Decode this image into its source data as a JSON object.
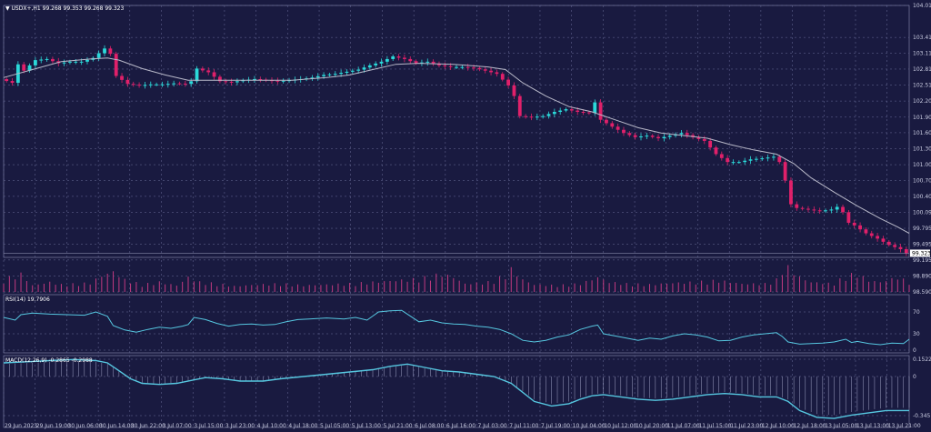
{
  "header": {
    "symbol": "USDX+,H1",
    "ohlc": "99.268 99.353 99.268 99.323",
    "rsi_label": "RSI(14) 19.7906",
    "macd_label": "MACD(12,26,9) -0.2865 -0.2988"
  },
  "colors": {
    "background": "#191a40",
    "grid": "#6b6e9a",
    "bull": "#2bd9d9",
    "bear": "#e0206a",
    "ma": "#b9b9c9",
    "indicator": "#56c7e0"
  },
  "chart_data": {
    "type": "candlestick",
    "price_ticks": [
      "104.015",
      "103.410",
      "103.110",
      "102.810",
      "102.510",
      "102.205",
      "101.900",
      "101.605",
      "101.305",
      "101.000",
      "100.700",
      "100.400",
      "100.095",
      "99.795",
      "99.495",
      "99.195",
      "98.890",
      "98.590"
    ],
    "last_price": "99.323",
    "rsi_ticks": [
      "70",
      "30",
      "0"
    ],
    "macd_ticks": [
      "0.1522",
      "0",
      "-0.3451"
    ],
    "x_ticks": [
      "29 Jun 2023",
      "29 Jun 19:00",
      "30 Jun 06:00",
      "30 Jun 14:00",
      "30 Jun 22:00",
      "3 Jul 07:00",
      "3 Jul 15:00",
      "3 Jul 23:00",
      "4 Jul 10:00",
      "4 Jul 18:00",
      "5 Jul 05:00",
      "5 Jul 13:00",
      "5 Jul 21:00",
      "6 Jul 08:00",
      "6 Jul 16:00",
      "7 Jul 03:00",
      "7 Jul 11:00",
      "7 Jul 19:00",
      "10 Jul 04:00",
      "10 Jul 12:00",
      "10 Jul 20:00",
      "11 Jul 07:00",
      "11 Jul 15:00",
      "11 Jul 23:00",
      "12 Jul 10:00",
      "12 Jul 18:00",
      "13 Jul 05:00",
      "13 Jul 13:00",
      "13 Jul 21:00"
    ],
    "price_path": [
      [
        0,
        102.62
      ],
      [
        2,
        102.55
      ],
      [
        3,
        102.9
      ],
      [
        4,
        102.78
      ],
      [
        6,
        102.98
      ],
      [
        8,
        103.0
      ],
      [
        10,
        102.92
      ],
      [
        12,
        102.95
      ],
      [
        14,
        102.95
      ],
      [
        16,
        103.02
      ],
      [
        18,
        103.2
      ],
      [
        19,
        103.1
      ],
      [
        20,
        102.68
      ],
      [
        22,
        102.53
      ],
      [
        24,
        102.5
      ],
      [
        26,
        102.52
      ],
      [
        28,
        102.52
      ],
      [
        30,
        102.54
      ],
      [
        32,
        102.53
      ],
      [
        33,
        102.58
      ],
      [
        34,
        102.82
      ],
      [
        36,
        102.75
      ],
      [
        38,
        102.58
      ],
      [
        40,
        102.56
      ],
      [
        42,
        102.6
      ],
      [
        44,
        102.62
      ],
      [
        46,
        102.6
      ],
      [
        48,
        102.58
      ],
      [
        50,
        102.6
      ],
      [
        52,
        102.62
      ],
      [
        54,
        102.65
      ],
      [
        56,
        102.7
      ],
      [
        58,
        102.72
      ],
      [
        60,
        102.76
      ],
      [
        62,
        102.8
      ],
      [
        64,
        102.88
      ],
      [
        66,
        102.95
      ],
      [
        68,
        103.05
      ],
      [
        70,
        103.0
      ],
      [
        72,
        102.92
      ],
      [
        74,
        102.95
      ],
      [
        76,
        102.88
      ],
      [
        78,
        102.85
      ],
      [
        80,
        102.85
      ],
      [
        82,
        102.83
      ],
      [
        84,
        102.78
      ],
      [
        86,
        102.72
      ],
      [
        88,
        102.5
      ],
      [
        89,
        102.3
      ],
      [
        90,
        101.92
      ],
      [
        92,
        101.9
      ],
      [
        94,
        101.92
      ],
      [
        96,
        102.0
      ],
      [
        98,
        102.05
      ],
      [
        100,
        102.0
      ],
      [
        102,
        101.98
      ],
      [
        103,
        102.18
      ],
      [
        104,
        101.85
      ],
      [
        106,
        101.72
      ],
      [
        108,
        101.6
      ],
      [
        110,
        101.52
      ],
      [
        112,
        101.55
      ],
      [
        114,
        101.5
      ],
      [
        116,
        101.55
      ],
      [
        118,
        101.6
      ],
      [
        120,
        101.52
      ],
      [
        122,
        101.45
      ],
      [
        124,
        101.2
      ],
      [
        126,
        101.05
      ],
      [
        128,
        101.05
      ],
      [
        130,
        101.1
      ],
      [
        132,
        101.12
      ],
      [
        134,
        101.15
      ],
      [
        135,
        101.05
      ],
      [
        136,
        100.7
      ],
      [
        137,
        100.25
      ],
      [
        138,
        100.18
      ],
      [
        140,
        100.15
      ],
      [
        142,
        100.12
      ],
      [
        144,
        100.15
      ],
      [
        145,
        100.2
      ],
      [
        146,
        100.1
      ],
      [
        147,
        99.9
      ],
      [
        148,
        99.85
      ],
      [
        150,
        99.7
      ],
      [
        152,
        99.6
      ],
      [
        154,
        99.48
      ],
      [
        156,
        99.4
      ],
      [
        157,
        99.32
      ]
    ],
    "ma_path": [
      [
        0,
        102.65
      ],
      [
        5,
        102.8
      ],
      [
        10,
        102.95
      ],
      [
        15,
        103.0
      ],
      [
        18,
        103.02
      ],
      [
        20,
        102.98
      ],
      [
        24,
        102.82
      ],
      [
        28,
        102.7
      ],
      [
        32,
        102.6
      ],
      [
        36,
        102.6
      ],
      [
        42,
        102.6
      ],
      [
        50,
        102.6
      ],
      [
        56,
        102.65
      ],
      [
        60,
        102.7
      ],
      [
        64,
        102.8
      ],
      [
        68,
        102.9
      ],
      [
        72,
        102.92
      ],
      [
        78,
        102.9
      ],
      [
        84,
        102.85
      ],
      [
        87,
        102.8
      ],
      [
        90,
        102.55
      ],
      [
        94,
        102.3
      ],
      [
        98,
        102.1
      ],
      [
        102,
        102.0
      ],
      [
        106,
        101.85
      ],
      [
        110,
        101.7
      ],
      [
        114,
        101.6
      ],
      [
        118,
        101.55
      ],
      [
        122,
        101.5
      ],
      [
        126,
        101.38
      ],
      [
        130,
        101.28
      ],
      [
        134,
        101.2
      ],
      [
        137,
        101.02
      ],
      [
        140,
        100.75
      ],
      [
        144,
        100.48
      ],
      [
        148,
        100.22
      ],
      [
        152,
        99.98
      ],
      [
        155,
        99.82
      ],
      [
        157,
        99.7
      ]
    ],
    "volume_path": [
      [
        0,
        15
      ],
      [
        3,
        22
      ],
      [
        5,
        8
      ],
      [
        8,
        12
      ],
      [
        10,
        9
      ],
      [
        13,
        10
      ],
      [
        15,
        11
      ],
      [
        17,
        20
      ],
      [
        19,
        25
      ],
      [
        21,
        15
      ],
      [
        24,
        9
      ],
      [
        27,
        12
      ],
      [
        30,
        8
      ],
      [
        32,
        18
      ],
      [
        34,
        12
      ],
      [
        37,
        10
      ],
      [
        40,
        7
      ],
      [
        44,
        9
      ],
      [
        48,
        10
      ],
      [
        52,
        8
      ],
      [
        56,
        9
      ],
      [
        60,
        10
      ],
      [
        64,
        12
      ],
      [
        68,
        14
      ],
      [
        72,
        16
      ],
      [
        76,
        22
      ],
      [
        78,
        18
      ],
      [
        80,
        10
      ],
      [
        84,
        12
      ],
      [
        87,
        20
      ],
      [
        88,
        28
      ],
      [
        90,
        15
      ],
      [
        92,
        9
      ],
      [
        96,
        8
      ],
      [
        100,
        10
      ],
      [
        103,
        18
      ],
      [
        105,
        12
      ],
      [
        108,
        10
      ],
      [
        112,
        9
      ],
      [
        116,
        11
      ],
      [
        120,
        12
      ],
      [
        124,
        14
      ],
      [
        128,
        10
      ],
      [
        132,
        10
      ],
      [
        134,
        15
      ],
      [
        135,
        28
      ],
      [
        136,
        30
      ],
      [
        138,
        18
      ],
      [
        140,
        12
      ],
      [
        144,
        10
      ],
      [
        146,
        20
      ],
      [
        148,
        22
      ],
      [
        150,
        14
      ],
      [
        152,
        12
      ],
      [
        155,
        18
      ],
      [
        157,
        12
      ]
    ],
    "rsi_path": [
      [
        0,
        60
      ],
      [
        2,
        55
      ],
      [
        3,
        65
      ],
      [
        5,
        68
      ],
      [
        8,
        66
      ],
      [
        11,
        65
      ],
      [
        14,
        64
      ],
      [
        16,
        70
      ],
      [
        18,
        62
      ],
      [
        19,
        45
      ],
      [
        21,
        37
      ],
      [
        23,
        33
      ],
      [
        25,
        38
      ],
      [
        27,
        42
      ],
      [
        29,
        40
      ],
      [
        31,
        44
      ],
      [
        32,
        47
      ],
      [
        33,
        60
      ],
      [
        35,
        56
      ],
      [
        37,
        49
      ],
      [
        39,
        44
      ],
      [
        41,
        47
      ],
      [
        43,
        48
      ],
      [
        45,
        46
      ],
      [
        47,
        47
      ],
      [
        49,
        52
      ],
      [
        51,
        56
      ],
      [
        53,
        57
      ],
      [
        56,
        59
      ],
      [
        59,
        57
      ],
      [
        61,
        60
      ],
      [
        63,
        55
      ],
      [
        65,
        70
      ],
      [
        67,
        72
      ],
      [
        69,
        73
      ],
      [
        70,
        66
      ],
      [
        72,
        52
      ],
      [
        74,
        55
      ],
      [
        76,
        50
      ],
      [
        78,
        48
      ],
      [
        80,
        47
      ],
      [
        82,
        44
      ],
      [
        84,
        42
      ],
      [
        86,
        38
      ],
      [
        88,
        30
      ],
      [
        90,
        18
      ],
      [
        92,
        15
      ],
      [
        94,
        18
      ],
      [
        96,
        24
      ],
      [
        98,
        28
      ],
      [
        100,
        38
      ],
      [
        102,
        44
      ],
      [
        103,
        46
      ],
      [
        104,
        30
      ],
      [
        106,
        26
      ],
      [
        108,
        22
      ],
      [
        110,
        18
      ],
      [
        112,
        22
      ],
      [
        114,
        20
      ],
      [
        116,
        26
      ],
      [
        118,
        30
      ],
      [
        120,
        28
      ],
      [
        122,
        24
      ],
      [
        124,
        17
      ],
      [
        126,
        18
      ],
      [
        128,
        24
      ],
      [
        130,
        28
      ],
      [
        132,
        30
      ],
      [
        134,
        32
      ],
      [
        135,
        25
      ],
      [
        136,
        15
      ],
      [
        138,
        11
      ],
      [
        140,
        12
      ],
      [
        142,
        13
      ],
      [
        144,
        15
      ],
      [
        146,
        20
      ],
      [
        147,
        14
      ],
      [
        148,
        16
      ],
      [
        150,
        12
      ],
      [
        152,
        10
      ],
      [
        154,
        13
      ],
      [
        156,
        12
      ],
      [
        157,
        20
      ]
    ],
    "macd_path": [
      [
        0,
        0.12
      ],
      [
        4,
        0.13
      ],
      [
        8,
        0.14
      ],
      [
        12,
        0.15
      ],
      [
        16,
        0.14
      ],
      [
        18,
        0.12
      ],
      [
        20,
        0.05
      ],
      [
        22,
        -0.02
      ],
      [
        24,
        -0.06
      ],
      [
        27,
        -0.07
      ],
      [
        30,
        -0.06
      ],
      [
        33,
        -0.03
      ],
      [
        35,
        -0.01
      ],
      [
        38,
        -0.02
      ],
      [
        41,
        -0.04
      ],
      [
        45,
        -0.04
      ],
      [
        48,
        -0.02
      ],
      [
        52,
        0.0
      ],
      [
        56,
        0.02
      ],
      [
        60,
        0.04
      ],
      [
        64,
        0.06
      ],
      [
        67,
        0.09
      ],
      [
        70,
        0.11
      ],
      [
        73,
        0.08
      ],
      [
        76,
        0.05
      ],
      [
        79,
        0.04
      ],
      [
        82,
        0.02
      ],
      [
        85,
        0.0
      ],
      [
        88,
        -0.06
      ],
      [
        90,
        -0.14
      ],
      [
        92,
        -0.22
      ],
      [
        95,
        -0.26
      ],
      [
        98,
        -0.24
      ],
      [
        100,
        -0.2
      ],
      [
        102,
        -0.17
      ],
      [
        104,
        -0.16
      ],
      [
        107,
        -0.18
      ],
      [
        110,
        -0.2
      ],
      [
        113,
        -0.21
      ],
      [
        116,
        -0.2
      ],
      [
        119,
        -0.18
      ],
      [
        122,
        -0.16
      ],
      [
        125,
        -0.15
      ],
      [
        128,
        -0.16
      ],
      [
        131,
        -0.18
      ],
      [
        134,
        -0.18
      ],
      [
        136,
        -0.22
      ],
      [
        138,
        -0.3
      ],
      [
        141,
        -0.36
      ],
      [
        144,
        -0.37
      ],
      [
        147,
        -0.34
      ],
      [
        150,
        -0.32
      ],
      [
        153,
        -0.3
      ],
      [
        157,
        -0.3
      ]
    ]
  }
}
